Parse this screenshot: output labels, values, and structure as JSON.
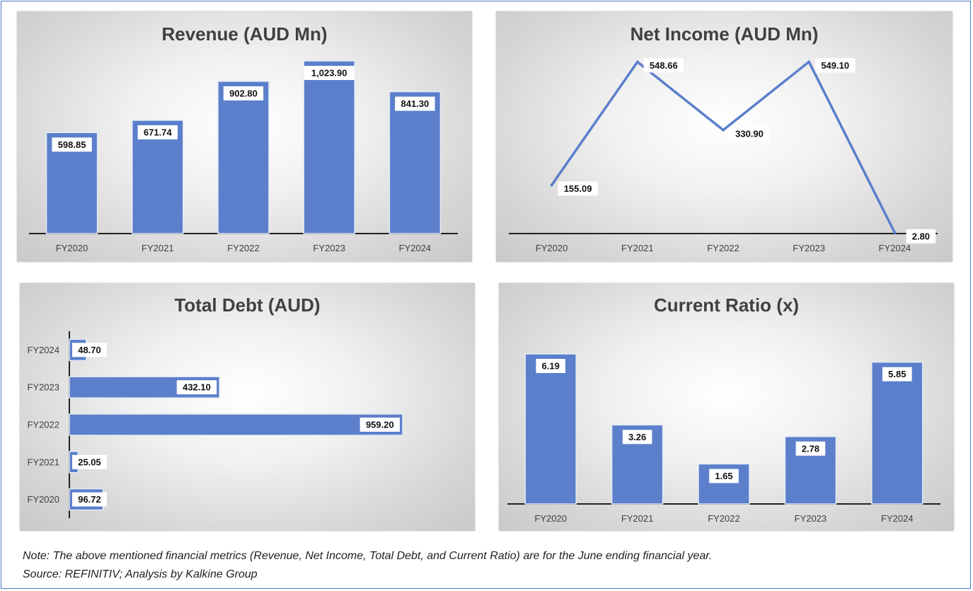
{
  "chart_data": [
    {
      "type": "bar",
      "title": "Revenue (AUD Mn)",
      "categories": [
        "FY2020",
        "FY2021",
        "FY2022",
        "FY2023",
        "FY2024"
      ],
      "values": [
        598.85,
        671.74,
        902.8,
        1023.9,
        841.3
      ],
      "labels": [
        "598.85",
        "671.74",
        "902.80",
        "1,023.90",
        "841.30"
      ],
      "xlabel": "",
      "ylabel": "",
      "ylim": [
        0,
        1150
      ],
      "grid": false,
      "color": "#5b7fcb"
    },
    {
      "type": "line",
      "title": "Net Income (AUD Mn)",
      "categories": [
        "FY2020",
        "FY2021",
        "FY2022",
        "FY2023",
        "FY2024"
      ],
      "values": [
        155.09,
        548.66,
        330.9,
        549.1,
        2.8
      ],
      "labels": [
        "155.09",
        "548.66",
        "330.90",
        "549.10",
        "2.80"
      ],
      "xlabel": "",
      "ylabel": "",
      "ylim": [
        0,
        620
      ],
      "grid": false,
      "color": "#5b7fcb"
    },
    {
      "type": "bar",
      "orientation": "horizontal",
      "title": "Total Debt (AUD)",
      "categories": [
        "FY2020",
        "FY2021",
        "FY2022",
        "FY2023",
        "FY2024"
      ],
      "values": [
        96.72,
        25.05,
        959.2,
        432.1,
        48.7
      ],
      "labels": [
        "96.72",
        "25.05",
        "959.20",
        "432.10",
        "48.70"
      ],
      "xlabel": "",
      "ylabel": "",
      "xlim": [
        0,
        1120
      ],
      "grid": false,
      "color": "#5b7fcb"
    },
    {
      "type": "bar",
      "title": "Current Ratio (x)",
      "categories": [
        "FY2020",
        "FY2021",
        "FY2022",
        "FY2023",
        "FY2024"
      ],
      "values": [
        6.19,
        3.26,
        1.65,
        2.78,
        5.85
      ],
      "labels": [
        "6.19",
        "3.26",
        "1.65",
        "2.78",
        "5.85"
      ],
      "xlabel": "",
      "ylabel": "",
      "ylim": [
        0,
        6.6
      ],
      "grid": false,
      "color": "#5b7fcb"
    }
  ],
  "notes": {
    "note": "Note: The above mentioned financial metrics (Revenue, Net Income, Total Debt, and Current Ratio) are for the June ending financial year.",
    "source": "Source: REFINITIV; Analysis by Kalkine Group"
  }
}
